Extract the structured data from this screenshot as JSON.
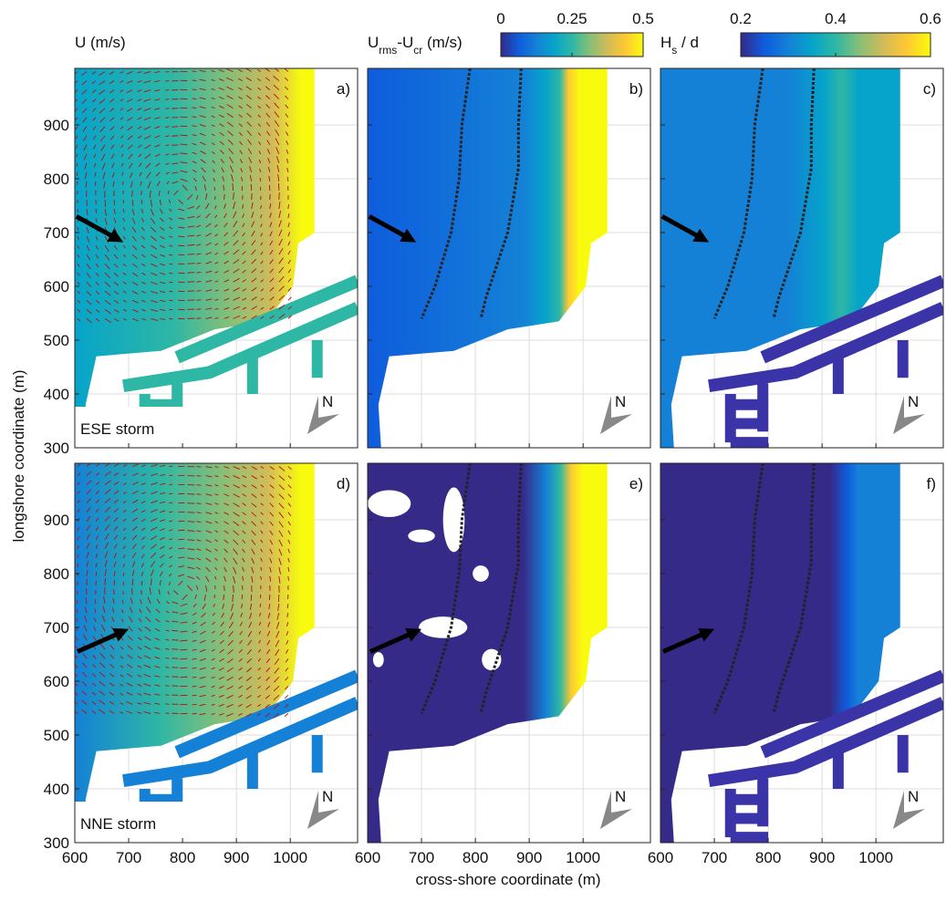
{
  "chart_data": {
    "type": "heatmap-grid",
    "xlabel": "cross-shore coordinate (m)",
    "ylabel": "longshore coordinate (m)",
    "xlim": [
      600,
      1125
    ],
    "ylim": [
      300,
      1005
    ],
    "xticks": [
      600,
      700,
      800,
      900,
      1000
    ],
    "yticks": [
      300,
      400,
      500,
      600,
      700,
      800,
      900
    ],
    "grid": true,
    "colormap": [
      "#352a87",
      "#0f5cdd",
      "#1481d6",
      "#06a4ca",
      "#2eb7a4",
      "#87bf77",
      "#d1bb59",
      "#fec832",
      "#f9fb0e"
    ],
    "columns": [
      {
        "title": [
          "U (m/s)"
        ]
      },
      {
        "title": [
          "U",
          "rms",
          "-U",
          "cr",
          " (m/s)"
        ],
        "colorbar": {
          "lim": [
            0,
            0.5
          ],
          "ticks": [
            0,
            0.25,
            0.5
          ]
        }
      },
      {
        "title": [
          "H",
          "s",
          " / d"
        ],
        "colorbar": {
          "lim": [
            0.2,
            0.6
          ],
          "ticks": [
            0.2,
            0.4,
            0.6
          ]
        }
      }
    ],
    "panels": [
      {
        "label": "a)",
        "storm": "ESE storm"
      },
      {
        "label": "b)"
      },
      {
        "label": "c)"
      },
      {
        "label": "d)",
        "storm": "NNE storm"
      },
      {
        "label": "e)"
      },
      {
        "label": "f)"
      }
    ],
    "north_label": "N"
  }
}
